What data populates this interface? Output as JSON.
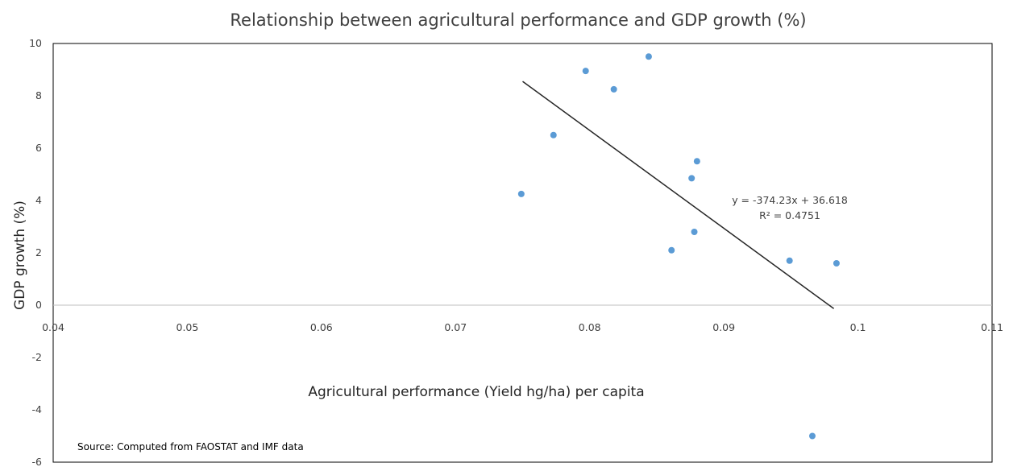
{
  "chart_data": {
    "type": "scatter",
    "title": "Relationship between agricultural performance and GDP growth (%)",
    "xlabel": "Agricultural performance (Yield hg/ha) per capita",
    "ylabel": "GDP growth (%)",
    "xlim": [
      0.04,
      0.11
    ],
    "ylim": [
      -6,
      10
    ],
    "x_ticks": [
      0.04,
      0.05,
      0.06,
      0.07,
      0.08,
      0.09,
      0.1,
      0.11
    ],
    "x_tick_labels": [
      "0.04",
      "0.05",
      "0.06",
      "0.07",
      "0.08",
      "0.09",
      "0.1",
      "0.11"
    ],
    "y_ticks": [
      -6,
      -4,
      -2,
      0,
      2,
      4,
      6,
      8,
      10
    ],
    "y_tick_labels": [
      "-6",
      "-4",
      "-2",
      "0",
      "2",
      "4",
      "6",
      "8",
      "10"
    ],
    "grid": false,
    "marker_color": "#5B9BD5",
    "trendline_color": "#262626",
    "points": [
      {
        "x": 0.0749,
        "y": 4.25
      },
      {
        "x": 0.0773,
        "y": 6.5
      },
      {
        "x": 0.0797,
        "y": 8.95
      },
      {
        "x": 0.0818,
        "y": 8.25
      },
      {
        "x": 0.0844,
        "y": 9.5
      },
      {
        "x": 0.0861,
        "y": 2.1
      },
      {
        "x": 0.0876,
        "y": 4.85
      },
      {
        "x": 0.0878,
        "y": 2.8
      },
      {
        "x": 0.088,
        "y": 5.5
      },
      {
        "x": 0.0949,
        "y": 1.7
      },
      {
        "x": 0.0966,
        "y": -5.0
      },
      {
        "x": 0.0984,
        "y": 1.6
      }
    ],
    "trendline": {
      "slope": -374.23,
      "intercept": 36.618,
      "x_start": 0.075,
      "x_end": 0.0982
    },
    "equation_label": "y = -374.23x + 36.618",
    "r2_label": "R² = 0.4751",
    "source_note": "Source: Computed from FAOSTAT and IMF data"
  }
}
